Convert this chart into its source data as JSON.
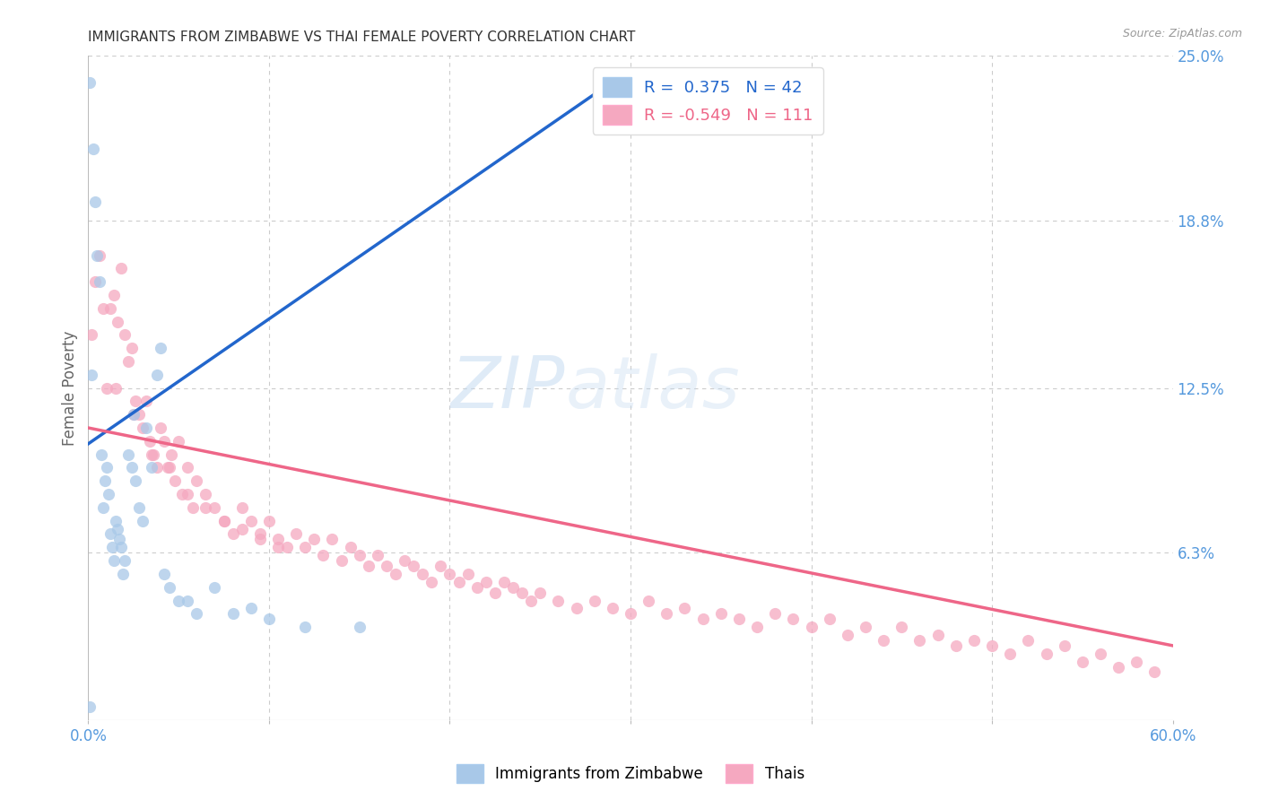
{
  "title": "IMMIGRANTS FROM ZIMBABWE VS THAI FEMALE POVERTY CORRELATION CHART",
  "source": "Source: ZipAtlas.com",
  "ylabel": "Female Poverty",
  "xlim": [
    0.0,
    0.6
  ],
  "ylim": [
    0.0,
    0.25
  ],
  "blue_R": 0.375,
  "blue_N": 42,
  "pink_R": -0.549,
  "pink_N": 111,
  "blue_color": "#A8C8E8",
  "pink_color": "#F5A8C0",
  "blue_line_color": "#2266CC",
  "pink_line_color": "#EE6688",
  "watermark_color": "#C8DCF0",
  "background_color": "#ffffff",
  "grid_color": "#CCCCCC",
  "tick_color": "#5599DD",
  "blue_scatter_x": [
    0.001,
    0.002,
    0.003,
    0.004,
    0.005,
    0.006,
    0.007,
    0.008,
    0.009,
    0.01,
    0.011,
    0.012,
    0.013,
    0.014,
    0.015,
    0.016,
    0.017,
    0.018,
    0.019,
    0.02,
    0.022,
    0.024,
    0.025,
    0.026,
    0.028,
    0.03,
    0.032,
    0.035,
    0.038,
    0.04,
    0.042,
    0.045,
    0.05,
    0.055,
    0.06,
    0.07,
    0.08,
    0.09,
    0.1,
    0.12,
    0.15,
    0.001
  ],
  "blue_scatter_y": [
    0.24,
    0.13,
    0.215,
    0.195,
    0.175,
    0.165,
    0.1,
    0.08,
    0.09,
    0.095,
    0.085,
    0.07,
    0.065,
    0.06,
    0.075,
    0.072,
    0.068,
    0.065,
    0.055,
    0.06,
    0.1,
    0.095,
    0.115,
    0.09,
    0.08,
    0.075,
    0.11,
    0.095,
    0.13,
    0.14,
    0.055,
    0.05,
    0.045,
    0.045,
    0.04,
    0.05,
    0.04,
    0.042,
    0.038,
    0.035,
    0.035,
    0.005
  ],
  "pink_scatter_x": [
    0.002,
    0.004,
    0.006,
    0.008,
    0.01,
    0.012,
    0.014,
    0.016,
    0.018,
    0.02,
    0.022,
    0.024,
    0.026,
    0.028,
    0.03,
    0.032,
    0.034,
    0.036,
    0.038,
    0.04,
    0.042,
    0.044,
    0.046,
    0.048,
    0.05,
    0.052,
    0.055,
    0.058,
    0.06,
    0.065,
    0.07,
    0.075,
    0.08,
    0.085,
    0.09,
    0.095,
    0.1,
    0.105,
    0.11,
    0.115,
    0.12,
    0.125,
    0.13,
    0.135,
    0.14,
    0.145,
    0.15,
    0.155,
    0.16,
    0.165,
    0.17,
    0.175,
    0.18,
    0.185,
    0.19,
    0.195,
    0.2,
    0.205,
    0.21,
    0.215,
    0.22,
    0.225,
    0.23,
    0.235,
    0.24,
    0.245,
    0.25,
    0.26,
    0.27,
    0.28,
    0.29,
    0.3,
    0.31,
    0.32,
    0.33,
    0.34,
    0.35,
    0.36,
    0.37,
    0.38,
    0.39,
    0.4,
    0.41,
    0.42,
    0.43,
    0.44,
    0.45,
    0.46,
    0.47,
    0.48,
    0.49,
    0.5,
    0.51,
    0.52,
    0.53,
    0.54,
    0.55,
    0.56,
    0.57,
    0.58,
    0.59,
    0.015,
    0.025,
    0.035,
    0.045,
    0.055,
    0.065,
    0.075,
    0.085,
    0.095,
    0.105
  ],
  "pink_scatter_y": [
    0.145,
    0.165,
    0.175,
    0.155,
    0.125,
    0.155,
    0.16,
    0.15,
    0.17,
    0.145,
    0.135,
    0.14,
    0.12,
    0.115,
    0.11,
    0.12,
    0.105,
    0.1,
    0.095,
    0.11,
    0.105,
    0.095,
    0.1,
    0.09,
    0.105,
    0.085,
    0.095,
    0.08,
    0.09,
    0.085,
    0.08,
    0.075,
    0.07,
    0.08,
    0.075,
    0.07,
    0.075,
    0.068,
    0.065,
    0.07,
    0.065,
    0.068,
    0.062,
    0.068,
    0.06,
    0.065,
    0.062,
    0.058,
    0.062,
    0.058,
    0.055,
    0.06,
    0.058,
    0.055,
    0.052,
    0.058,
    0.055,
    0.052,
    0.055,
    0.05,
    0.052,
    0.048,
    0.052,
    0.05,
    0.048,
    0.045,
    0.048,
    0.045,
    0.042,
    0.045,
    0.042,
    0.04,
    0.045,
    0.04,
    0.042,
    0.038,
    0.04,
    0.038,
    0.035,
    0.04,
    0.038,
    0.035,
    0.038,
    0.032,
    0.035,
    0.03,
    0.035,
    0.03,
    0.032,
    0.028,
    0.03,
    0.028,
    0.025,
    0.03,
    0.025,
    0.028,
    0.022,
    0.025,
    0.02,
    0.022,
    0.018,
    0.125,
    0.115,
    0.1,
    0.095,
    0.085,
    0.08,
    0.075,
    0.072,
    0.068,
    0.065
  ],
  "blue_line_x0": 0.0,
  "blue_line_x1": 0.3,
  "blue_line_y0": 0.104,
  "blue_line_y1": 0.245,
  "pink_line_x0": 0.0,
  "pink_line_x1": 0.6,
  "pink_line_y0": 0.11,
  "pink_line_y1": 0.028
}
